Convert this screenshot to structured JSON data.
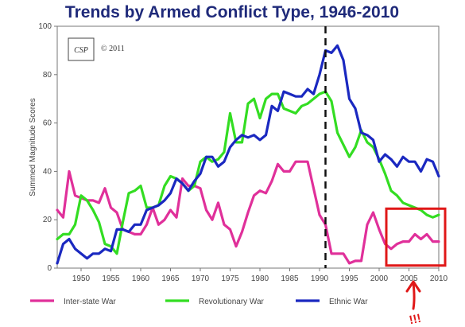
{
  "chart_data": {
    "type": "line",
    "title": "Trends by Armed Conflict Type, 1946-2010",
    "xlabel": "",
    "ylabel": "Summed Magnitude Scores",
    "xlim": [
      1946,
      2010
    ],
    "ylim": [
      0,
      100
    ],
    "xticks": [
      1950,
      1955,
      1960,
      1965,
      1970,
      1975,
      1980,
      1985,
      1990,
      1995,
      2000,
      2005,
      2010
    ],
    "yticks": [
      0,
      20,
      40,
      60,
      80,
      100
    ],
    "legend": "bottom",
    "logo": {
      "text": "CSP",
      "copyright": "© 2011"
    },
    "annotations": {
      "vertical_line_year": 1991,
      "highlight_box": {
        "x": [
          2002,
          2010
        ],
        "y": [
          7,
          18
        ]
      },
      "arrow_text": "!!!"
    },
    "series": [
      {
        "name": "Inter-state War",
        "color": "#e0309a",
        "points": [
          [
            1946,
            24
          ],
          [
            1947,
            21
          ],
          [
            1948,
            40
          ],
          [
            1949,
            30
          ],
          [
            1950,
            29
          ],
          [
            1951,
            28
          ],
          [
            1952,
            28
          ],
          [
            1953,
            27
          ],
          [
            1954,
            33
          ],
          [
            1955,
            25
          ],
          [
            1956,
            23
          ],
          [
            1957,
            16
          ],
          [
            1958,
            15
          ],
          [
            1959,
            14
          ],
          [
            1960,
            14
          ],
          [
            1961,
            18
          ],
          [
            1962,
            25
          ],
          [
            1963,
            18
          ],
          [
            1964,
            20
          ],
          [
            1965,
            24
          ],
          [
            1966,
            21
          ],
          [
            1967,
            37
          ],
          [
            1968,
            34
          ],
          [
            1969,
            34
          ],
          [
            1970,
            33
          ],
          [
            1971,
            24
          ],
          [
            1972,
            20
          ],
          [
            1973,
            27
          ],
          [
            1974,
            18
          ],
          [
            1975,
            16
          ],
          [
            1976,
            9
          ],
          [
            1977,
            15
          ],
          [
            1978,
            23
          ],
          [
            1979,
            30
          ],
          [
            1980,
            32
          ],
          [
            1981,
            31
          ],
          [
            1982,
            36
          ],
          [
            1983,
            43
          ],
          [
            1984,
            40
          ],
          [
            1985,
            40
          ],
          [
            1986,
            44
          ],
          [
            1987,
            44
          ],
          [
            1988,
            44
          ],
          [
            1989,
            33
          ],
          [
            1990,
            22
          ],
          [
            1991,
            18
          ],
          [
            1992,
            6
          ],
          [
            1993,
            6
          ],
          [
            1994,
            6
          ],
          [
            1995,
            2
          ],
          [
            1996,
            3
          ],
          [
            1997,
            3
          ],
          [
            1998,
            18
          ],
          [
            1999,
            23
          ],
          [
            2000,
            16
          ],
          [
            2001,
            10
          ],
          [
            2002,
            8
          ],
          [
            2003,
            10
          ],
          [
            2004,
            11
          ],
          [
            2005,
            11
          ],
          [
            2006,
            14
          ],
          [
            2007,
            12
          ],
          [
            2008,
            14
          ],
          [
            2009,
            11
          ],
          [
            2010,
            11
          ]
        ]
      },
      {
        "name": "Revolutionary War",
        "color": "#33dd22",
        "points": [
          [
            1946,
            12
          ],
          [
            1947,
            14
          ],
          [
            1948,
            14
          ],
          [
            1949,
            18
          ],
          [
            1950,
            30
          ],
          [
            1951,
            28
          ],
          [
            1952,
            24
          ],
          [
            1953,
            19
          ],
          [
            1954,
            10
          ],
          [
            1955,
            9
          ],
          [
            1956,
            6
          ],
          [
            1957,
            19
          ],
          [
            1958,
            31
          ],
          [
            1959,
            32
          ],
          [
            1960,
            34
          ],
          [
            1961,
            25
          ],
          [
            1962,
            25
          ],
          [
            1963,
            26
          ],
          [
            1964,
            34
          ],
          [
            1965,
            38
          ],
          [
            1966,
            37
          ],
          [
            1967,
            35
          ],
          [
            1968,
            32
          ],
          [
            1969,
            34
          ],
          [
            1970,
            44
          ],
          [
            1971,
            46
          ],
          [
            1972,
            44
          ],
          [
            1973,
            45
          ],
          [
            1974,
            48
          ],
          [
            1975,
            64
          ],
          [
            1976,
            52
          ],
          [
            1977,
            52
          ],
          [
            1978,
            68
          ],
          [
            1979,
            70
          ],
          [
            1980,
            62
          ],
          [
            1981,
            70
          ],
          [
            1982,
            72
          ],
          [
            1983,
            72
          ],
          [
            1984,
            66
          ],
          [
            1985,
            65
          ],
          [
            1986,
            64
          ],
          [
            1987,
            67
          ],
          [
            1988,
            68
          ],
          [
            1989,
            70
          ],
          [
            1990,
            72
          ],
          [
            1991,
            73
          ],
          [
            1992,
            69
          ],
          [
            1993,
            56
          ],
          [
            1994,
            51
          ],
          [
            1995,
            46
          ],
          [
            1996,
            50
          ],
          [
            1997,
            57
          ],
          [
            1998,
            52
          ],
          [
            1999,
            50
          ],
          [
            2000,
            45
          ],
          [
            2001,
            39
          ],
          [
            2002,
            32
          ],
          [
            2003,
            30
          ],
          [
            2004,
            27
          ],
          [
            2005,
            26
          ],
          [
            2006,
            25
          ],
          [
            2007,
            24
          ],
          [
            2008,
            22
          ],
          [
            2009,
            21
          ],
          [
            2010,
            22
          ]
        ]
      },
      {
        "name": "Ethnic War",
        "color": "#1a28c0",
        "points": [
          [
            1946,
            2
          ],
          [
            1947,
            10
          ],
          [
            1948,
            12
          ],
          [
            1949,
            8
          ],
          [
            1950,
            6
          ],
          [
            1951,
            4
          ],
          [
            1952,
            6
          ],
          [
            1953,
            6
          ],
          [
            1954,
            8
          ],
          [
            1955,
            7
          ],
          [
            1956,
            16
          ],
          [
            1957,
            16
          ],
          [
            1958,
            15
          ],
          [
            1959,
            18
          ],
          [
            1960,
            18
          ],
          [
            1961,
            24
          ],
          [
            1962,
            25
          ],
          [
            1963,
            26
          ],
          [
            1964,
            28
          ],
          [
            1965,
            31
          ],
          [
            1966,
            37
          ],
          [
            1967,
            35
          ],
          [
            1968,
            32
          ],
          [
            1969,
            36
          ],
          [
            1970,
            39
          ],
          [
            1971,
            46
          ],
          [
            1972,
            46
          ],
          [
            1973,
            42
          ],
          [
            1974,
            44
          ],
          [
            1975,
            50
          ],
          [
            1976,
            53
          ],
          [
            1977,
            55
          ],
          [
            1978,
            54
          ],
          [
            1979,
            55
          ],
          [
            1980,
            53
          ],
          [
            1981,
            55
          ],
          [
            1982,
            67
          ],
          [
            1983,
            65
          ],
          [
            1984,
            73
          ],
          [
            1985,
            72
          ],
          [
            1986,
            71
          ],
          [
            1987,
            71
          ],
          [
            1988,
            74
          ],
          [
            1989,
            72
          ],
          [
            1990,
            80
          ],
          [
            1991,
            90
          ],
          [
            1992,
            89
          ],
          [
            1993,
            92
          ],
          [
            1994,
            86
          ],
          [
            1995,
            70
          ],
          [
            1996,
            66
          ],
          [
            1997,
            56
          ],
          [
            1998,
            55
          ],
          [
            1999,
            53
          ],
          [
            2000,
            44
          ],
          [
            2001,
            47
          ],
          [
            2002,
            45
          ],
          [
            2003,
            42
          ],
          [
            2004,
            46
          ],
          [
            2005,
            44
          ],
          [
            2006,
            44
          ],
          [
            2007,
            40
          ],
          [
            2008,
            45
          ],
          [
            2009,
            44
          ],
          [
            2010,
            38
          ]
        ]
      }
    ]
  }
}
